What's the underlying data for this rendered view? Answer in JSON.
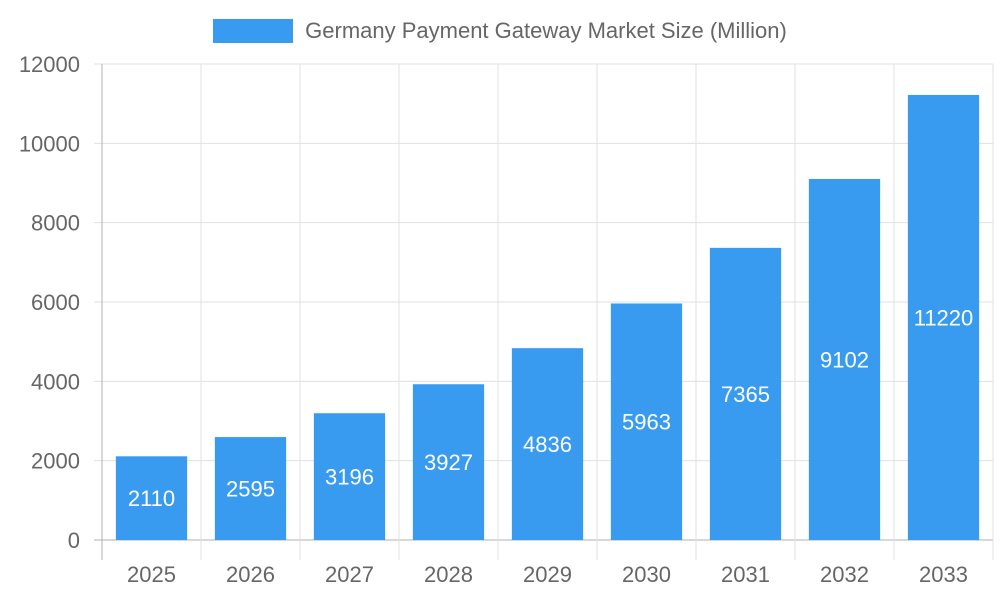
{
  "legend": {
    "label": "Germany Payment Gateway Market Size (Million)",
    "color": "#399bf0"
  },
  "colors": {
    "bar": "#399bf0",
    "bar_label": "#ffffff",
    "grid": "#e0e0e0",
    "axis": "#b0b0b0",
    "tick_text": "#666666"
  },
  "chart_data": {
    "type": "bar",
    "title": "Germany Payment Gateway Market Size (Million)",
    "categories": [
      "2025",
      "2026",
      "2027",
      "2028",
      "2029",
      "2030",
      "2031",
      "2032",
      "2033"
    ],
    "series": [
      {
        "name": "Germany Payment Gateway Market Size (Million)",
        "values": [
          2110,
          2595,
          3196,
          3927,
          4836,
          5963,
          7365,
          9102,
          11220
        ]
      }
    ],
    "values": [
      2110,
      2595,
      3196,
      3927,
      4836,
      5963,
      7365,
      9102,
      11220
    ],
    "xlabel": "",
    "ylabel": "",
    "ylim": [
      0,
      12000
    ],
    "yticks": [
      0,
      2000,
      4000,
      6000,
      8000,
      10000,
      12000
    ],
    "grid": true,
    "legend_position": "top",
    "data_labels": true
  }
}
